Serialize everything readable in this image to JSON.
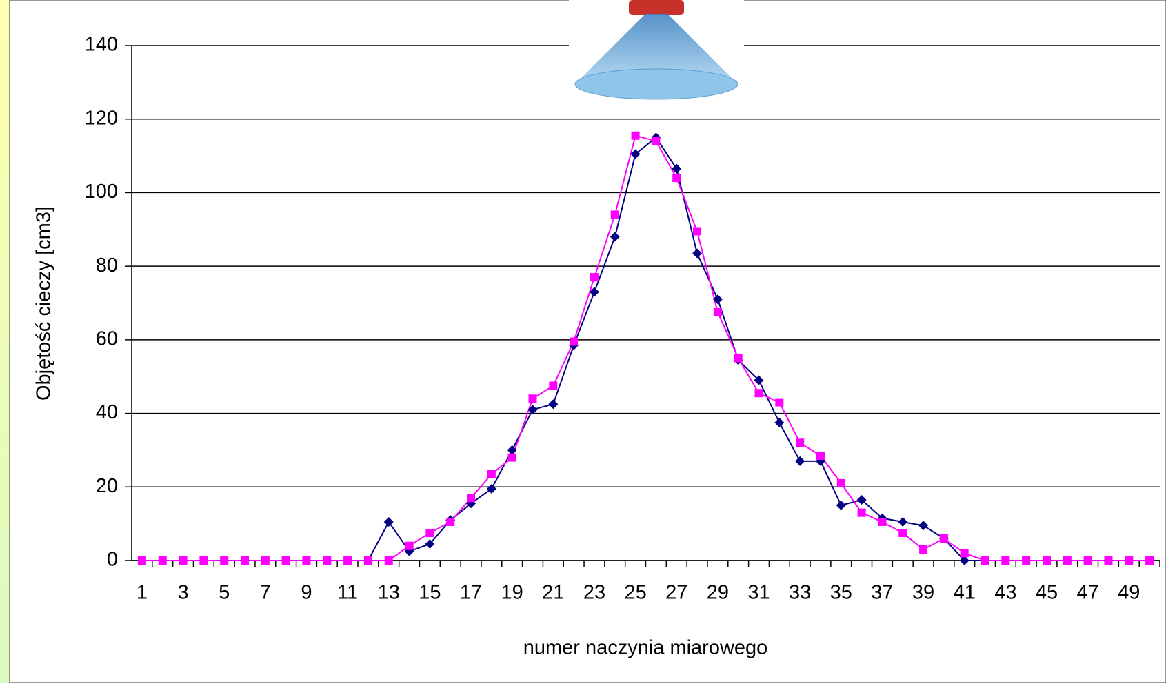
{
  "chart_data": {
    "type": "line",
    "x_label": "numer naczynia miarowego",
    "y_label": "Objętość cieczy [cm3]",
    "categories": [
      "1",
      null,
      "3",
      null,
      "5",
      null,
      "7",
      null,
      "9",
      null,
      "11",
      null,
      "13",
      null,
      "15",
      null,
      "17",
      null,
      "19",
      null,
      "21",
      null,
      "23",
      null,
      "25",
      null,
      "27",
      null,
      "29",
      null,
      "31",
      null,
      "33",
      null,
      "35",
      null,
      "37",
      null,
      "39",
      null,
      "41",
      null,
      "43",
      null,
      "45",
      null,
      "47",
      null,
      "49",
      null
    ],
    "series": [
      {
        "color": "#000080",
        "marker": "diamond",
        "values": [
          0,
          0,
          0,
          0,
          0,
          0,
          0,
          0,
          0,
          0,
          0,
          0,
          10.5,
          2.5,
          4.5,
          11,
          15.5,
          19.5,
          30,
          41,
          42.5,
          58.5,
          73,
          88,
          110.5,
          115,
          106.5,
          83.5,
          71,
          54.5,
          49,
          37.5,
          27,
          27,
          15,
          16.5,
          11.5,
          10.5,
          9.5,
          6,
          0,
          0,
          0,
          0,
          0,
          0,
          0,
          0,
          0,
          0
        ]
      },
      {
        "color": "#ff00ff",
        "marker": "square",
        "values": [
          0,
          0,
          0,
          0,
          0,
          0,
          0,
          0,
          0,
          0,
          0,
          0,
          0,
          4,
          7.5,
          10.5,
          17,
          23.5,
          28,
          44,
          47.5,
          59.5,
          77,
          94,
          115.5,
          114,
          104,
          89.5,
          67.5,
          55,
          45.5,
          43,
          32,
          28.5,
          21,
          13,
          10.5,
          7.5,
          3,
          6,
          2,
          0,
          0,
          0,
          0,
          0,
          0,
          0,
          0,
          0
        ]
      }
    ],
    "ylim": [
      0,
      140
    ],
    "yticks": [
      0,
      20,
      40,
      60,
      80,
      100,
      120,
      140
    ],
    "grid": true
  }
}
